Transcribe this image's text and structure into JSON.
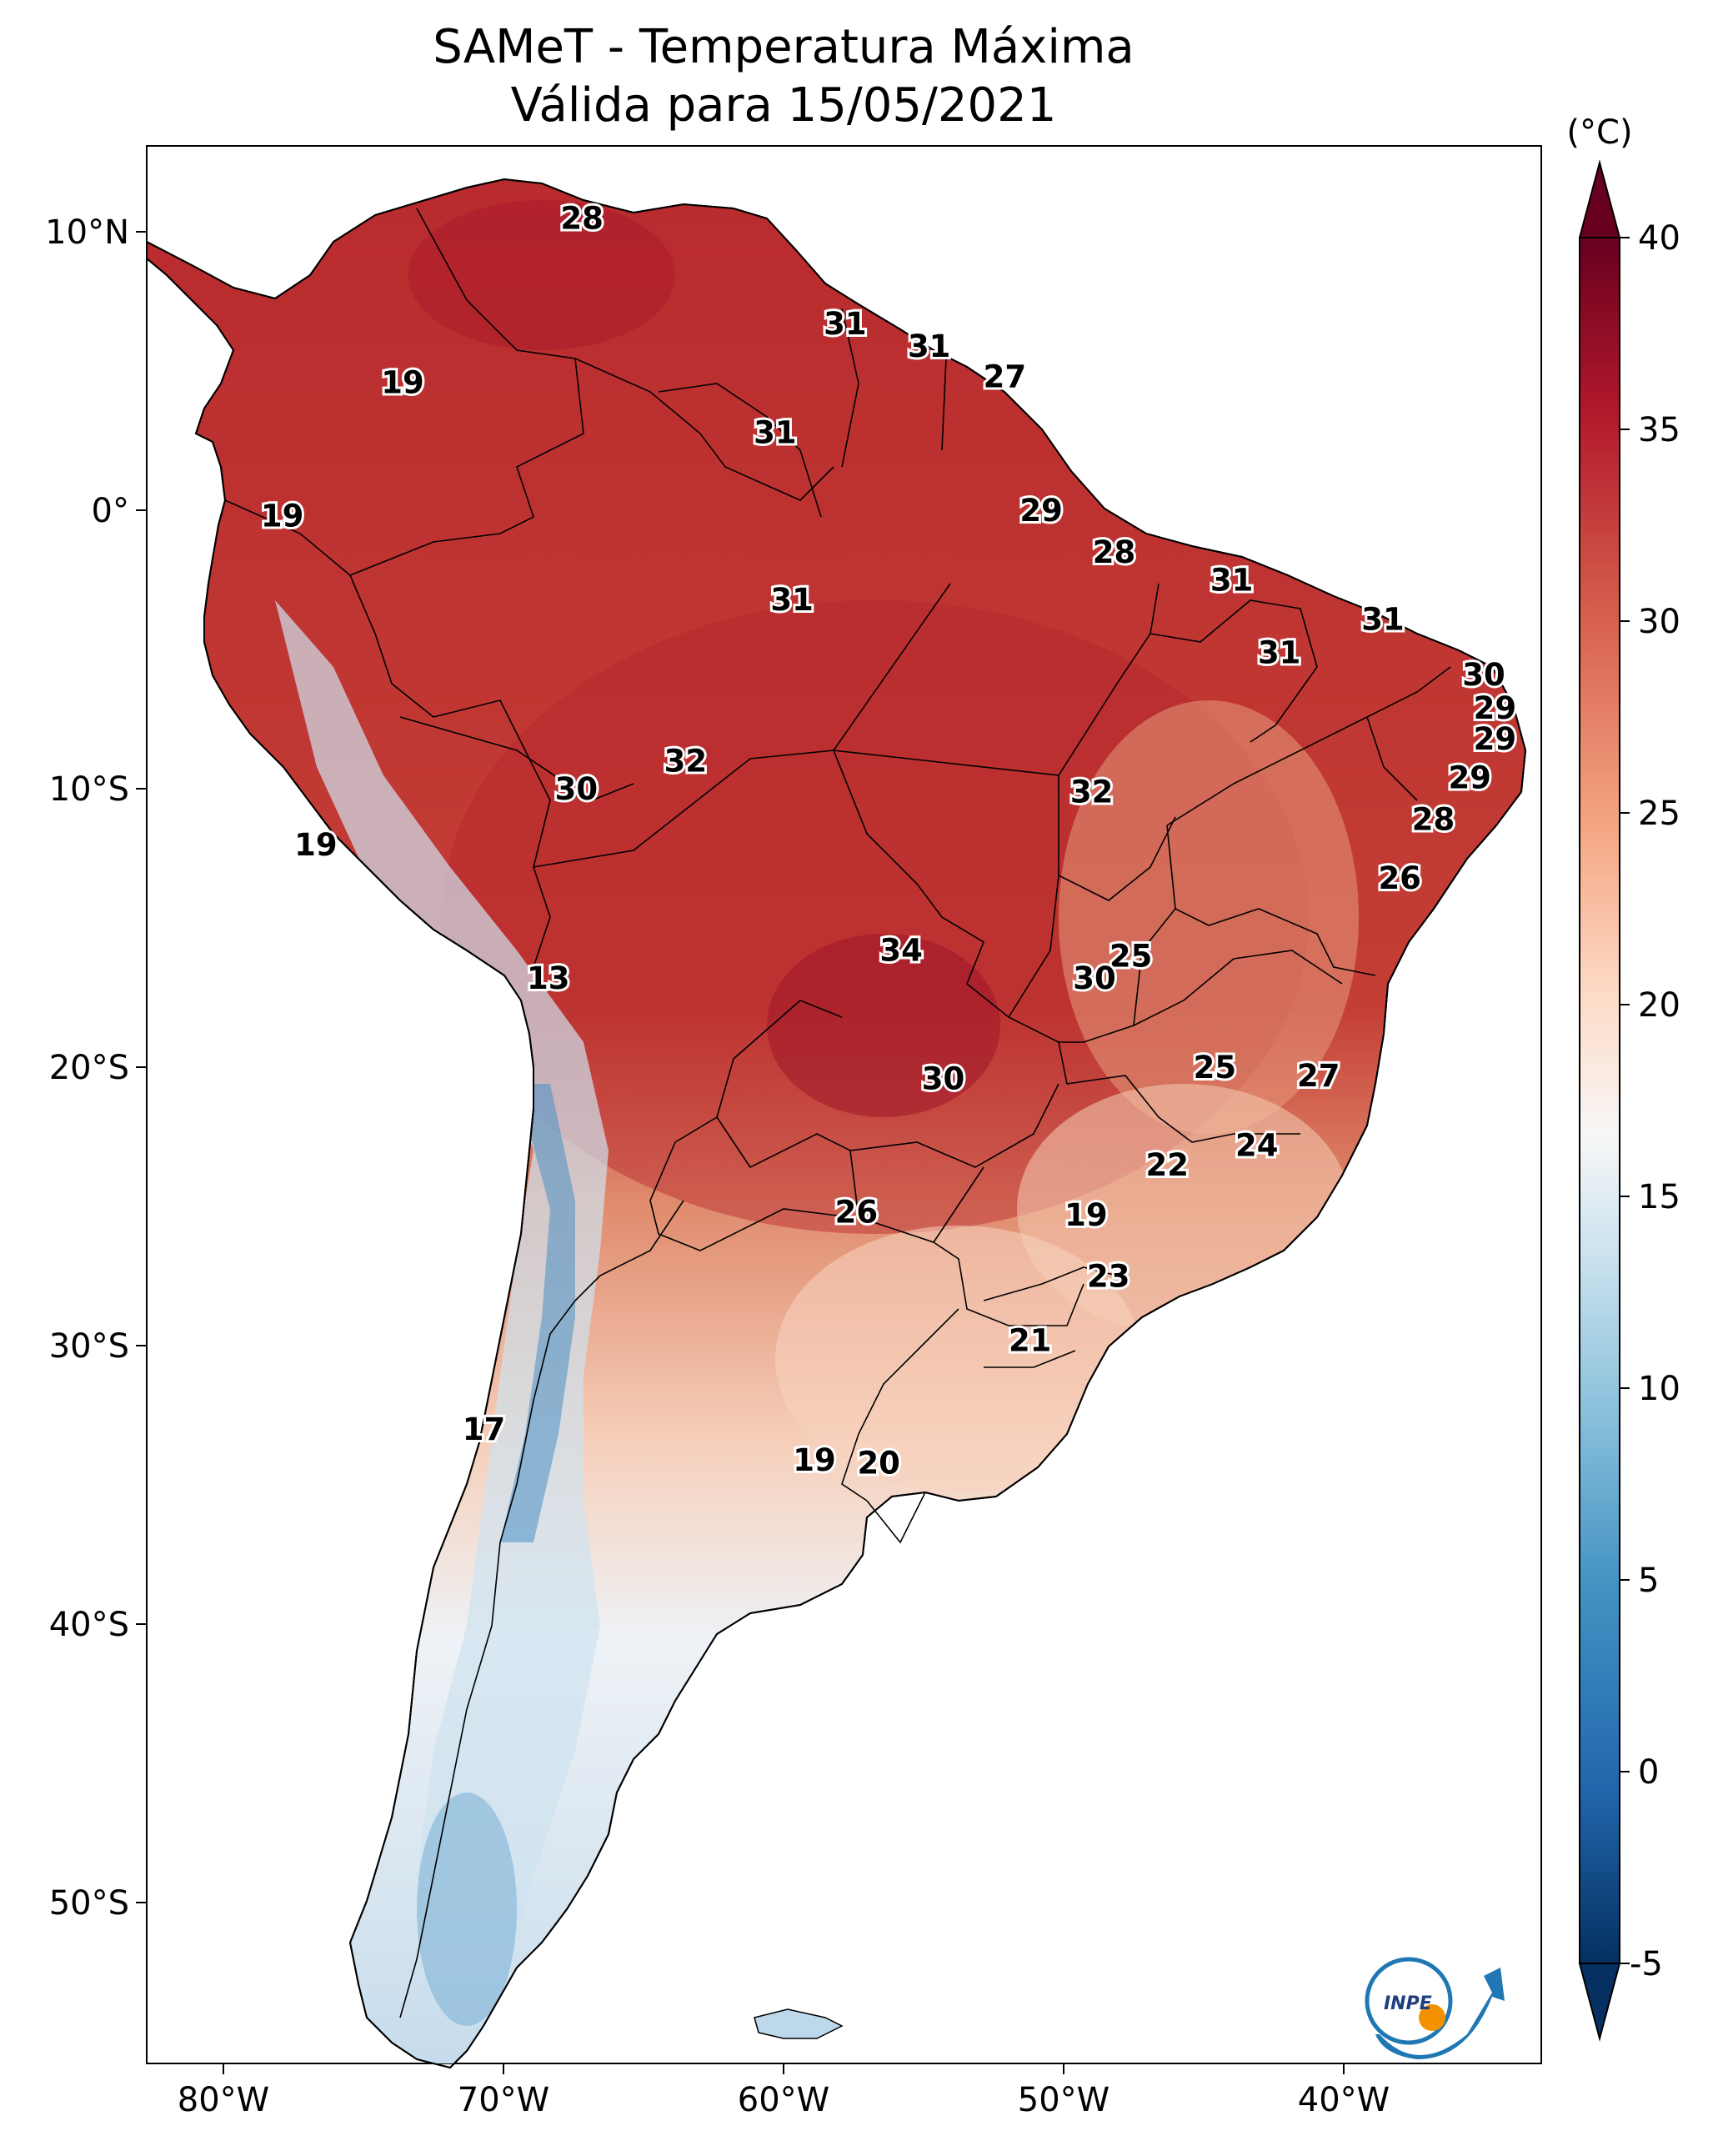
{
  "title": {
    "line1": "SAMeT - Temperatura Máxima",
    "line2": "Válida para 15/05/2021"
  },
  "axes": {
    "lon_ticks": [
      "80°W",
      "70°W",
      "60°W",
      "50°W",
      "40°W"
    ],
    "lat_ticks": [
      "10°N",
      "0°",
      "10°S",
      "20°S",
      "30°S",
      "40°S",
      "50°S"
    ]
  },
  "colorbar": {
    "unit": "(°C)",
    "ticks": [
      "40",
      "35",
      "30",
      "25",
      "20",
      "15",
      "10",
      "5",
      "0",
      "-5"
    ],
    "colors": [
      "#08306b",
      "#2166ac",
      "#4393c3",
      "#92c5de",
      "#d1e5f0",
      "#f7f7f7",
      "#fddbc7",
      "#f4a582",
      "#d6604d",
      "#b2182b",
      "#67001f"
    ]
  },
  "labels": [
    {
      "text": "28",
      "lon": -67.2,
      "lat": 10.5
    },
    {
      "text": "19",
      "lon": -73.6,
      "lat": 4.6
    },
    {
      "text": "31",
      "lon": -57.8,
      "lat": 6.7
    },
    {
      "text": "31",
      "lon": -54.8,
      "lat": 5.9
    },
    {
      "text": "27",
      "lon": -52.1,
      "lat": 4.8
    },
    {
      "text": "31",
      "lon": -60.3,
      "lat": 2.8
    },
    {
      "text": "19",
      "lon": -77.9,
      "lat": -0.2
    },
    {
      "text": "29",
      "lon": -50.8,
      "lat": 0.0
    },
    {
      "text": "28",
      "lon": -48.2,
      "lat": -1.5
    },
    {
      "text": "31",
      "lon": -44.0,
      "lat": -2.5
    },
    {
      "text": "31",
      "lon": -38.6,
      "lat": -3.9
    },
    {
      "text": "31",
      "lon": -59.7,
      "lat": -3.2
    },
    {
      "text": "31",
      "lon": -42.3,
      "lat": -5.1
    },
    {
      "text": "30",
      "lon": -35.0,
      "lat": -5.9
    },
    {
      "text": "29",
      "lon": -34.6,
      "lat": -7.1
    },
    {
      "text": "29",
      "lon": -34.6,
      "lat": -8.2
    },
    {
      "text": "32",
      "lon": -63.5,
      "lat": -9.0
    },
    {
      "text": "30",
      "lon": -67.4,
      "lat": -10.0
    },
    {
      "text": "32",
      "lon": -49.0,
      "lat": -10.1
    },
    {
      "text": "29",
      "lon": -35.5,
      "lat": -9.6
    },
    {
      "text": "28",
      "lon": -36.8,
      "lat": -11.1
    },
    {
      "text": "19",
      "lon": -76.7,
      "lat": -12.0
    },
    {
      "text": "26",
      "lon": -38.0,
      "lat": -13.2
    },
    {
      "text": "34",
      "lon": -55.8,
      "lat": -15.8
    },
    {
      "text": "25",
      "lon": -47.6,
      "lat": -16.0
    },
    {
      "text": "13",
      "lon": -68.4,
      "lat": -16.8
    },
    {
      "text": "30",
      "lon": -48.9,
      "lat": -16.8
    },
    {
      "text": "25",
      "lon": -44.6,
      "lat": -20.0
    },
    {
      "text": "27",
      "lon": -40.9,
      "lat": -20.3
    },
    {
      "text": "30",
      "lon": -54.3,
      "lat": -20.4
    },
    {
      "text": "24",
      "lon": -43.1,
      "lat": -22.8
    },
    {
      "text": "22",
      "lon": -46.3,
      "lat": -23.5
    },
    {
      "text": "26",
      "lon": -57.4,
      "lat": -25.2
    },
    {
      "text": "19",
      "lon": -49.2,
      "lat": -25.3
    },
    {
      "text": "23",
      "lon": -48.4,
      "lat": -27.5
    },
    {
      "text": "21",
      "lon": -51.2,
      "lat": -29.8
    },
    {
      "text": "17",
      "lon": -70.7,
      "lat": -33.0
    },
    {
      "text": "19",
      "lon": -58.9,
      "lat": -34.1
    },
    {
      "text": "20",
      "lon": -56.6,
      "lat": -34.2
    }
  ]
}
